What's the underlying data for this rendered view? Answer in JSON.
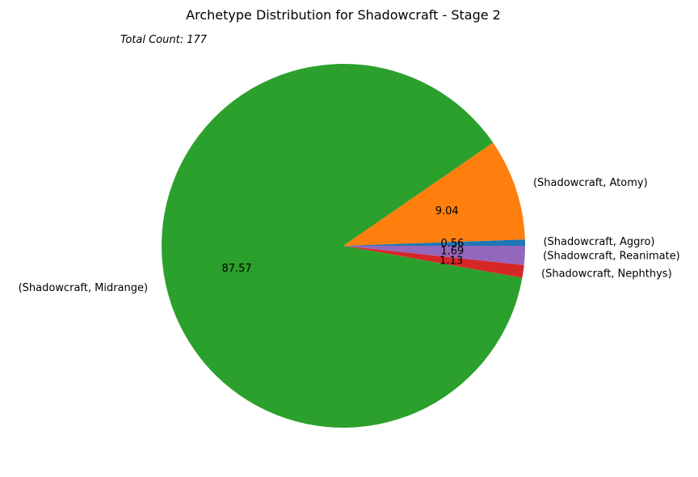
{
  "chart_data": {
    "type": "pie",
    "title": "Archetype Distribution for Shadowcraft - Stage 2",
    "subtitle": "Total Count: 177",
    "series": [
      {
        "name": "(Shadowcraft, Aggro)",
        "value": 0.56,
        "value_label": "0.56",
        "color": "#1f77b4"
      },
      {
        "name": "(Shadowcraft, Atomy)",
        "value": 9.04,
        "value_label": "9.04",
        "color": "#ff7f0e"
      },
      {
        "name": "(Shadowcraft, Midrange)",
        "value": 87.57,
        "value_label": "87.57",
        "color": "#2ca02c"
      },
      {
        "name": "(Shadowcraft, Nephthys)",
        "value": 1.13,
        "value_label": "1.13",
        "color": "#d62728"
      },
      {
        "name": "(Shadowcraft, Reanimate)",
        "value": 1.69,
        "value_label": "1.69",
        "color": "#9467bd"
      }
    ]
  }
}
